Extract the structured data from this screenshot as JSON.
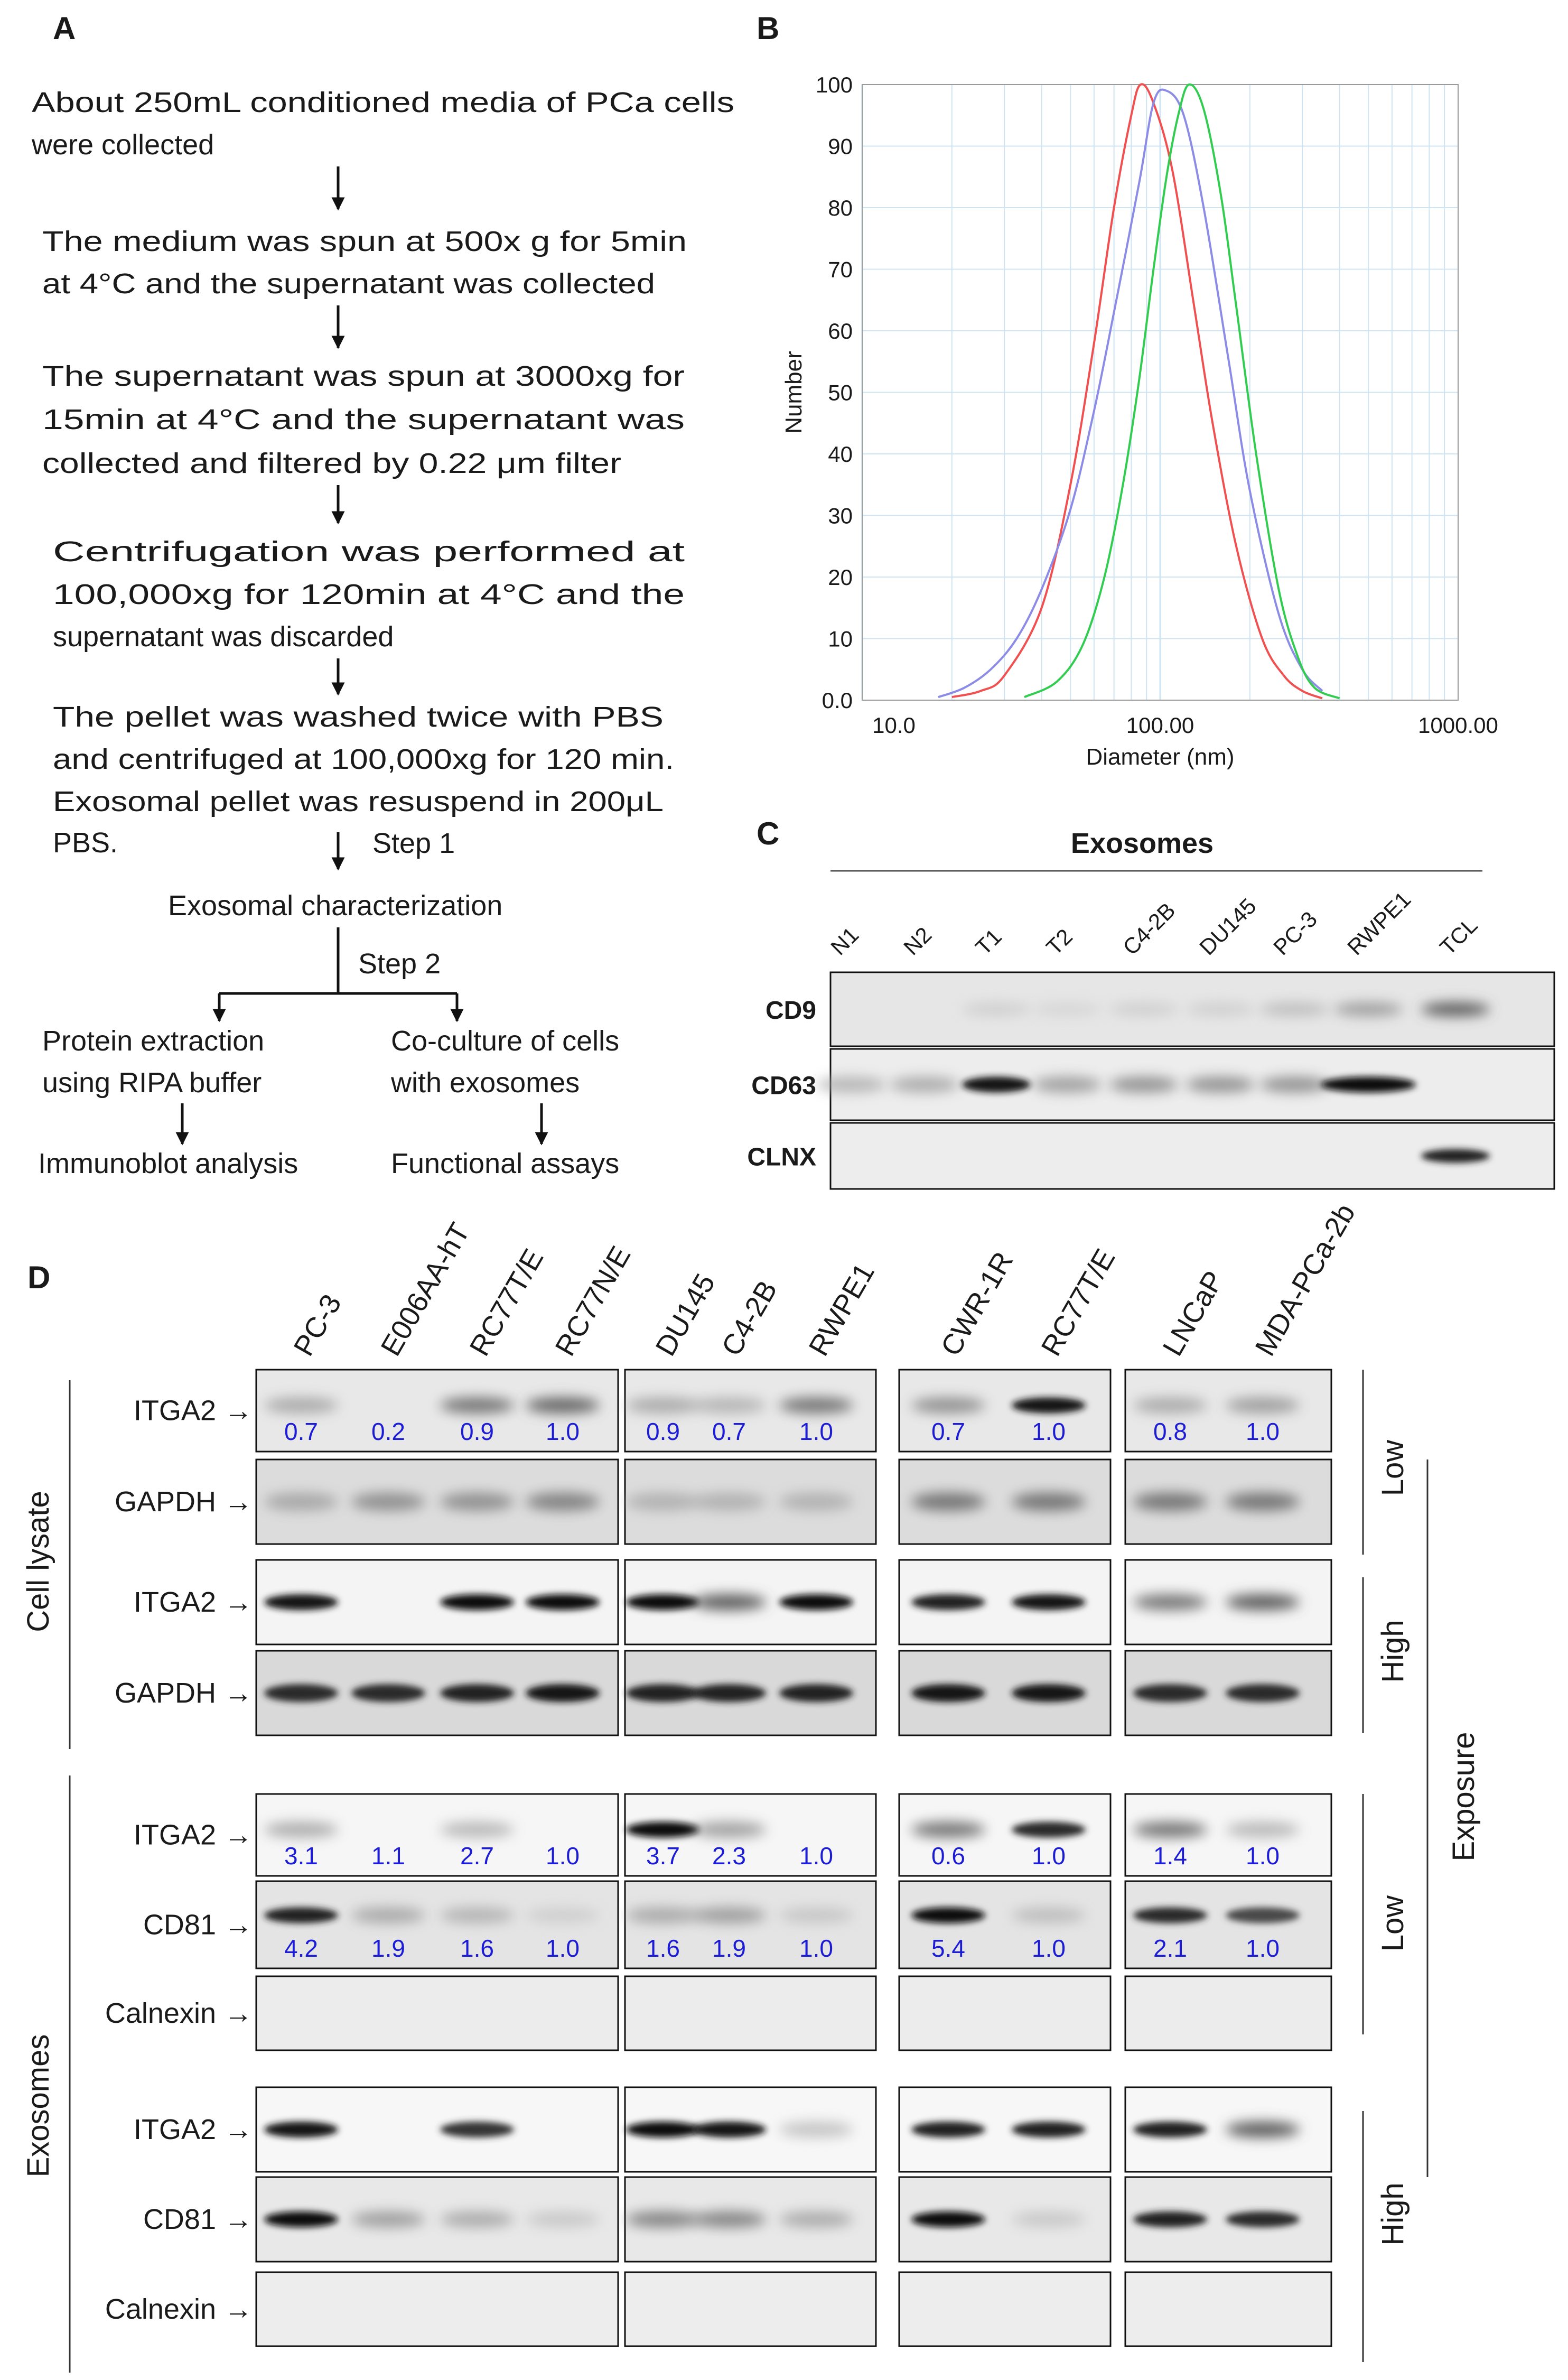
{
  "panel_letters": {
    "a": "A",
    "b": "B",
    "c": "C",
    "d": "D"
  },
  "panel_a": {
    "steps": [
      [
        "About 250mL conditioned media of PCa cells",
        "were collected"
      ],
      [
        "The medium was spun at 500x g for 5min",
        "at 4°C and the supernatant was collected"
      ],
      [
        "The supernatant was spun at 3000xg for",
        "15min at 4°C and the supernatant was",
        "collected and filtered by 0.22 μm filter"
      ],
      [
        "Centrifugation was performed at",
        "100,000xg for 120min  at 4°C and the",
        "supernatant was discarded"
      ],
      [
        "The pellet was washed twice with PBS",
        "and centrifuged at 100,000xg for 120 min.",
        "Exosomal pellet was resuspend in 200μL",
        "PBS."
      ]
    ],
    "step1_label": "Step 1",
    "characterization": "Exosomal characterization",
    "step2_label": "Step 2",
    "left_branch": [
      "Protein extraction",
      "using RIPA buffer"
    ],
    "right_branch": [
      "Co-culture of cells",
      "with exosomes"
    ],
    "left_end": "Immunoblot analysis",
    "right_end": "Functional assays"
  },
  "chart_data": {
    "type": "line",
    "title": "",
    "xlabel": "Diameter (nm)",
    "ylabel": "Number",
    "xscale": "log",
    "xlim": [
      10,
      1000
    ],
    "ylim": [
      0,
      100
    ],
    "xticks": [
      10,
      100,
      1000
    ],
    "xtick_labels": [
      "10.0",
      "100.00",
      "1000.00"
    ],
    "yticks": [
      0,
      10,
      20,
      30,
      40,
      50,
      60,
      70,
      80,
      90,
      100
    ],
    "ytick_labels": [
      "0.0",
      "10",
      "20",
      "30",
      "40",
      "50",
      "60",
      "70",
      "80",
      "90",
      "100"
    ],
    "grid": true,
    "legend": "none",
    "series": [
      {
        "name": "red",
        "color": "#f05050",
        "x": [
          20,
          25,
          30,
          40,
          50,
          60,
          70,
          80,
          86,
          95,
          110,
          130,
          150,
          180,
          220,
          260,
          300,
          350
        ],
        "y": [
          0.5,
          1.5,
          4,
          15,
          35,
          58,
          80,
          95,
          100,
          97,
          86,
          64,
          45,
          25,
          10,
          4,
          1.5,
          0.3
        ]
      },
      {
        "name": "purple",
        "color": "#8c8ce6",
        "x": [
          18,
          22,
          27,
          33,
          40,
          50,
          60,
          70,
          85,
          95,
          105,
          120,
          140,
          170,
          200,
          250,
          300,
          350
        ],
        "y": [
          0.5,
          2,
          5,
          10,
          18,
          31,
          47,
          63,
          84,
          97,
          99,
          95,
          80,
          55,
          34,
          14,
          5,
          1.5
        ]
      },
      {
        "name": "green",
        "color": "#32cd50",
        "x": [
          35,
          45,
          55,
          65,
          75,
          85,
          95,
          105,
          115,
          125,
          140,
          160,
          180,
          210,
          250,
          290,
          330,
          400
        ],
        "y": [
          0.5,
          3,
          9,
          20,
          35,
          52,
          70,
          85,
          95,
          100,
          96,
          82,
          64,
          40,
          18,
          7,
          2,
          0.3
        ]
      }
    ]
  },
  "panel_c": {
    "title": "Exosomes",
    "lanes": [
      "N1",
      "N2",
      "T1",
      "T2",
      "C4-2B",
      "DU145",
      "PC-3",
      "RWPE1",
      "TCL"
    ],
    "rows": [
      "CD9",
      "CD63",
      "CLNX"
    ]
  },
  "panel_d": {
    "groups": [
      {
        "lanes": [
          "PC-3",
          "E006AA-hT",
          "RC77T/E",
          "RC77N/E"
        ]
      },
      {
        "lanes": [
          "DU145",
          "C4-2B",
          "RWPE1"
        ]
      },
      {
        "lanes": [
          "CWR-1R",
          "RC77T/E"
        ]
      },
      {
        "lanes": [
          "LNCaP",
          "MDA-PCa-2b"
        ]
      }
    ],
    "cell_lysate_label": "Cell lysate",
    "exosomes_label": "Exosomes",
    "exposure_label": "Exposure",
    "low_label": "Low",
    "high_label": "High",
    "rows": [
      {
        "label": "ITGA2",
        "values": [
          [
            "0.7",
            "0.2",
            "0.9",
            "1.0"
          ],
          [
            "0.9",
            "0.7",
            "1.0"
          ],
          [
            "0.7",
            "1.0"
          ],
          [
            "0.8",
            "1.0"
          ]
        ]
      },
      {
        "label": "GAPDH"
      },
      {
        "label": "ITGA2"
      },
      {
        "label": "GAPDH"
      },
      {
        "label": "ITGA2",
        "values": [
          [
            "3.1",
            "1.1",
            "2.7",
            "1.0"
          ],
          [
            "3.7",
            "2.3",
            "1.0"
          ],
          [
            "0.6",
            "1.0"
          ],
          [
            "1.4",
            "1.0"
          ]
        ]
      },
      {
        "label": "CD81",
        "values": [
          [
            "4.2",
            "1.9",
            "1.6",
            "1.0"
          ],
          [
            "1.6",
            "1.9",
            "1.0"
          ],
          [
            "5.4",
            "1.0"
          ],
          [
            "2.1",
            "1.0"
          ]
        ]
      },
      {
        "label": "Calnexin"
      },
      {
        "label": "ITGA2"
      },
      {
        "label": "CD81"
      },
      {
        "label": "Calnexin"
      }
    ]
  },
  "colors": {
    "annotation_blue": "#1c1cd6",
    "chart_grid": "#cfe4f3"
  }
}
